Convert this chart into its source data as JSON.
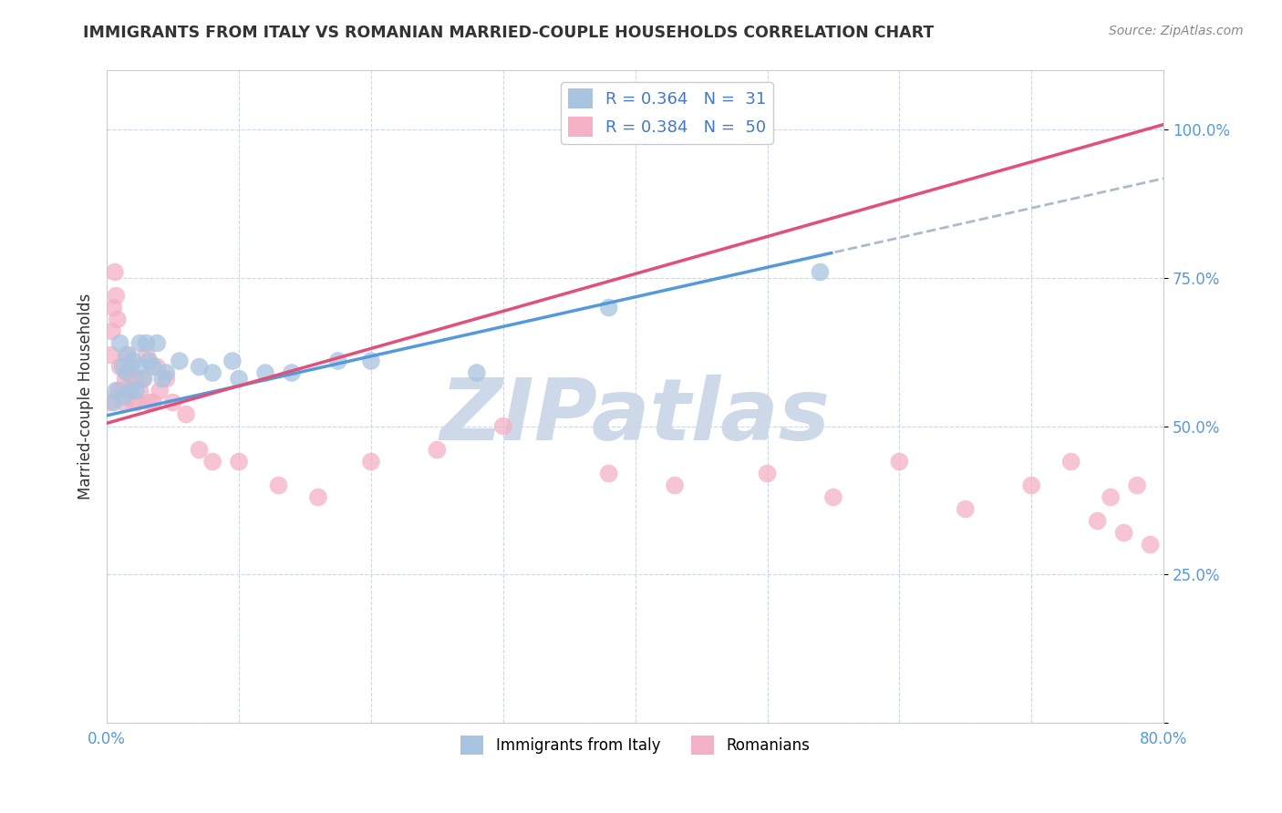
{
  "title": "IMMIGRANTS FROM ITALY VS ROMANIAN MARRIED-COUPLE HOUSEHOLDS CORRELATION CHART",
  "source": "Source: ZipAtlas.com",
  "ylabel_text": "Married-couple Households",
  "xlim": [
    0.0,
    0.8
  ],
  "ylim": [
    0.0,
    1.1
  ],
  "x_ticks": [
    0.0,
    0.1,
    0.2,
    0.3,
    0.4,
    0.5,
    0.6,
    0.7,
    0.8
  ],
  "y_ticks": [
    0.0,
    0.25,
    0.5,
    0.75,
    1.0
  ],
  "y_tick_labels": [
    "",
    "25.0%",
    "50.0%",
    "75.0%",
    "100.0%"
  ],
  "italy_R": 0.364,
  "italy_N": 31,
  "romania_R": 0.384,
  "romania_N": 50,
  "italy_color": "#a8c4e0",
  "italy_line_color": "#5599dd",
  "romania_color": "#f4b0c4",
  "romania_line_color": "#e0507a",
  "trendline_ext_color": "#aabbcc",
  "watermark_color": "#cdd8e8",
  "background_color": "#ffffff",
  "grid_color": "#c8d8e8",
  "italy_x": [
    0.005,
    0.007,
    0.01,
    0.012,
    0.013,
    0.015,
    0.015,
    0.018,
    0.02,
    0.022,
    0.025,
    0.025,
    0.028,
    0.03,
    0.032,
    0.035,
    0.038,
    0.042,
    0.045,
    0.055,
    0.07,
    0.08,
    0.095,
    0.1,
    0.12,
    0.14,
    0.175,
    0.2,
    0.28,
    0.38,
    0.54
  ],
  "italy_y": [
    0.54,
    0.56,
    0.64,
    0.6,
    0.55,
    0.62,
    0.59,
    0.56,
    0.61,
    0.56,
    0.64,
    0.6,
    0.58,
    0.64,
    0.61,
    0.6,
    0.64,
    0.58,
    0.59,
    0.61,
    0.6,
    0.59,
    0.61,
    0.58,
    0.59,
    0.59,
    0.61,
    0.61,
    0.59,
    0.7,
    0.76
  ],
  "romania_x": [
    0.002,
    0.003,
    0.004,
    0.005,
    0.006,
    0.007,
    0.008,
    0.009,
    0.01,
    0.012,
    0.013,
    0.014,
    0.015,
    0.016,
    0.018,
    0.019,
    0.02,
    0.022,
    0.023,
    0.025,
    0.027,
    0.03,
    0.032,
    0.035,
    0.038,
    0.04,
    0.045,
    0.05,
    0.06,
    0.07,
    0.08,
    0.1,
    0.13,
    0.16,
    0.2,
    0.25,
    0.3,
    0.38,
    0.43,
    0.5,
    0.55,
    0.6,
    0.65,
    0.7,
    0.73,
    0.75,
    0.76,
    0.77,
    0.78,
    0.79
  ],
  "romania_y": [
    0.54,
    0.62,
    0.66,
    0.7,
    0.76,
    0.72,
    0.68,
    0.56,
    0.6,
    0.56,
    0.54,
    0.58,
    0.56,
    0.62,
    0.6,
    0.58,
    0.54,
    0.58,
    0.54,
    0.56,
    0.58,
    0.62,
    0.54,
    0.54,
    0.6,
    0.56,
    0.58,
    0.54,
    0.52,
    0.46,
    0.44,
    0.44,
    0.4,
    0.38,
    0.44,
    0.46,
    0.5,
    0.42,
    0.4,
    0.42,
    0.38,
    0.44,
    0.36,
    0.4,
    0.44,
    0.34,
    0.38,
    0.32,
    0.4,
    0.3
  ]
}
